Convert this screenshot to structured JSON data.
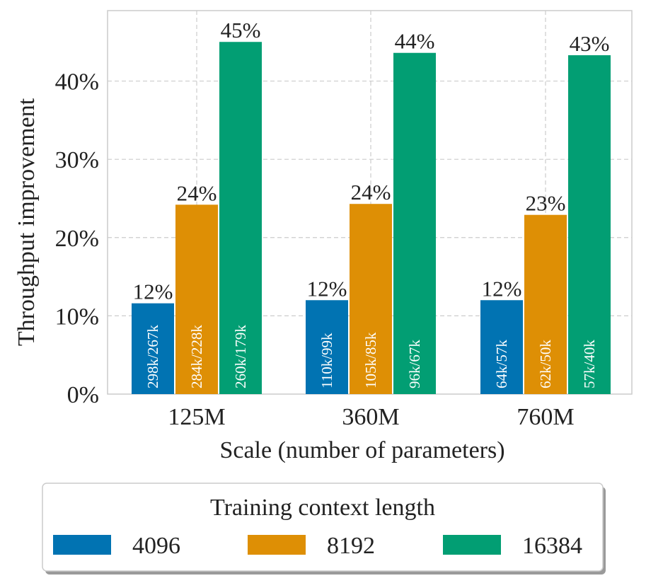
{
  "chart_data": {
    "type": "bar",
    "categories": [
      "125M",
      "360M",
      "760M"
    ],
    "series": [
      {
        "name": "4096",
        "color": "#0173b2",
        "values": [
          11.6,
          12.0,
          12.0
        ],
        "labels": [
          "12%",
          "12%",
          "12%"
        ],
        "inner_labels": [
          "298k/267k",
          "110k/99k",
          "64k/57k"
        ]
      },
      {
        "name": "8192",
        "color": "#de8f05",
        "values": [
          24.2,
          24.3,
          22.9
        ],
        "labels": [
          "24%",
          "24%",
          "23%"
        ],
        "inner_labels": [
          "284k/228k",
          "105k/85k",
          "62k/50k"
        ]
      },
      {
        "name": "16384",
        "color": "#029e73",
        "values": [
          45.0,
          43.6,
          43.3
        ],
        "labels": [
          "45%",
          "44%",
          "43%"
        ],
        "inner_labels": [
          "260k/179k",
          "96k/67k",
          "57k/40k"
        ]
      }
    ],
    "xlabel": "Scale (number of parameters)",
    "ylabel": "Throughput improvement",
    "ylim": [
      0,
      49
    ],
    "yticks": [
      0,
      10,
      20,
      30,
      40
    ],
    "ytick_labels": [
      "0%",
      "10%",
      "20%",
      "30%",
      "40%"
    ],
    "grid": true,
    "legend_title": "Training context length",
    "legend_placement": "bottom-center"
  }
}
